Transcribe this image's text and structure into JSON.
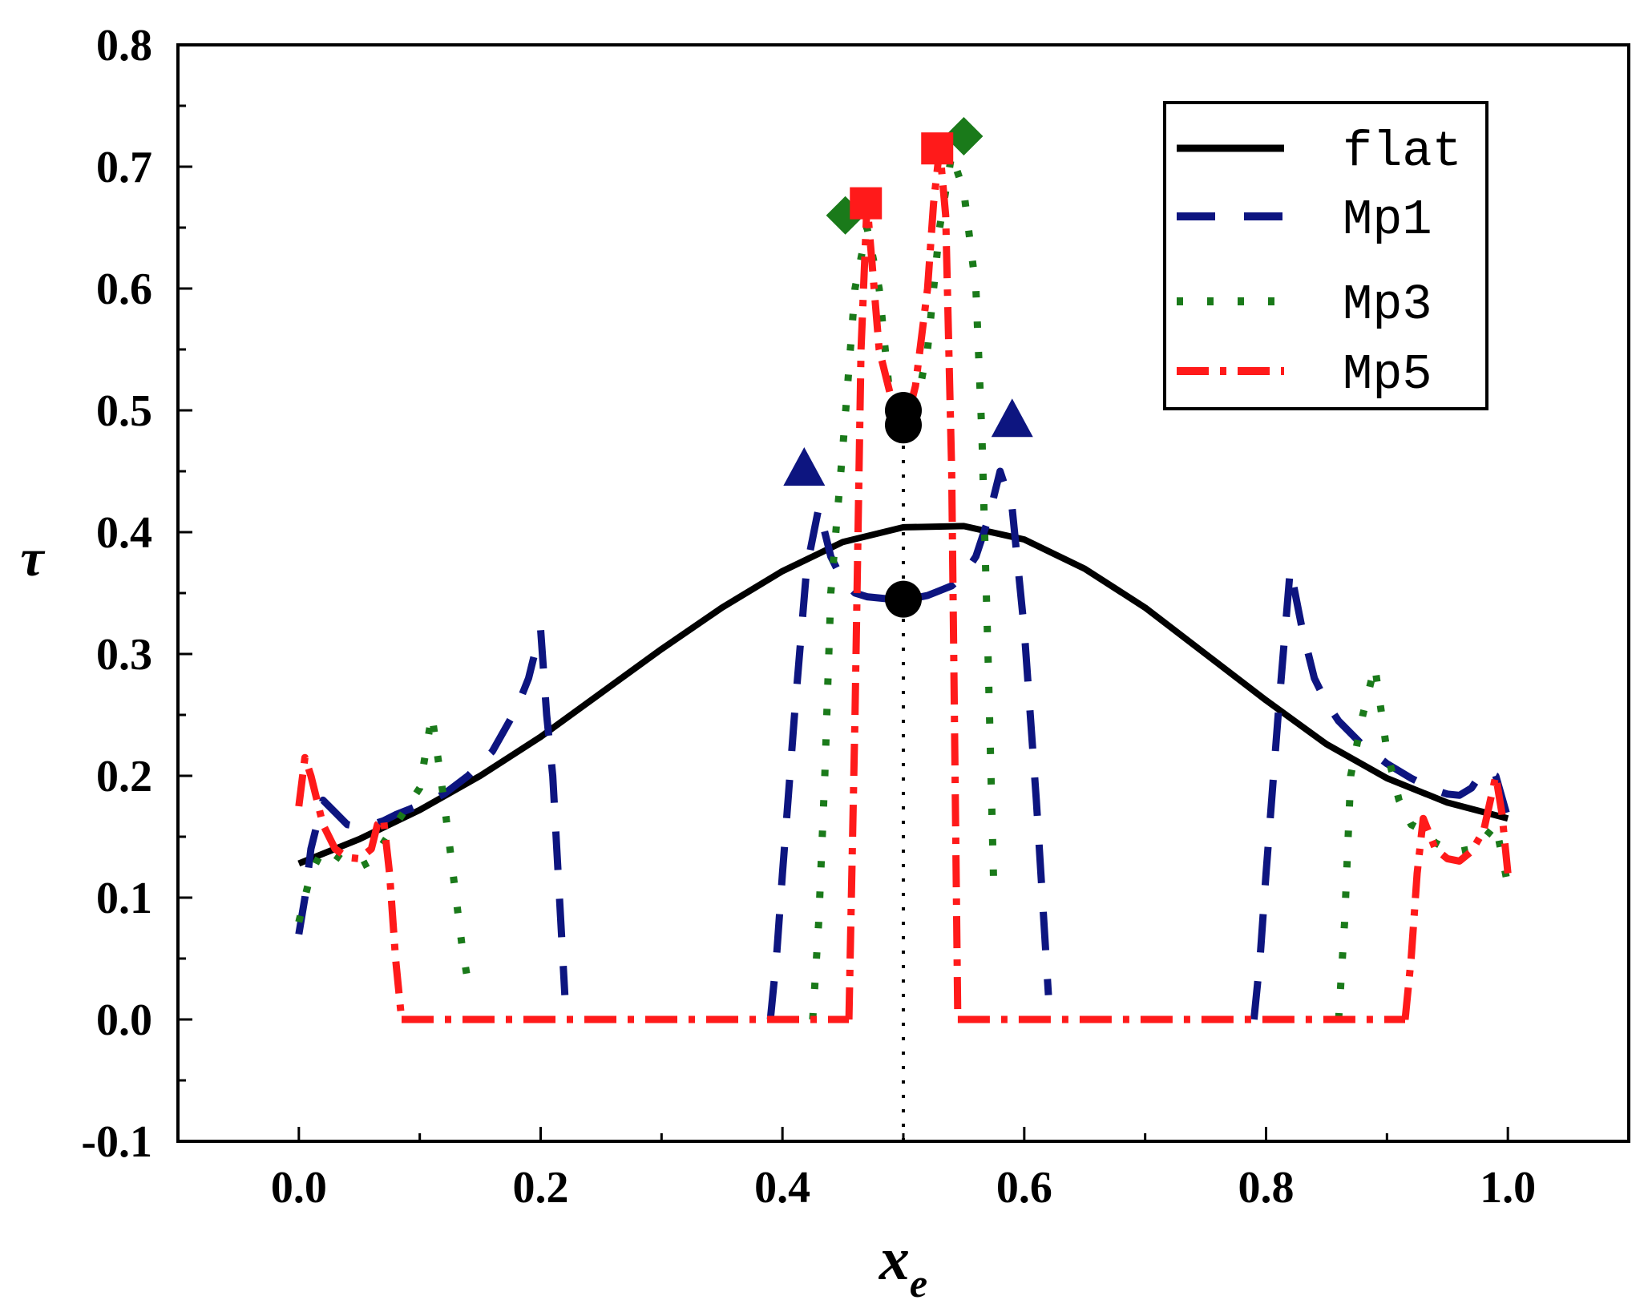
{
  "chart_data": {
    "type": "line",
    "title": "",
    "xlabel": "x",
    "xlabel_sub": "e",
    "ylabel": "τ",
    "xlim": [
      -0.1,
      1.1
    ],
    "ylim": [
      -0.1,
      0.8
    ],
    "x_ticks": [
      0.0,
      0.2,
      0.4,
      0.6,
      0.8,
      1.0
    ],
    "x_tick_labels": [
      "0.0",
      "0.2",
      "0.4",
      "0.6",
      "0.8",
      "1.0"
    ],
    "y_ticks": [
      -0.1,
      0.0,
      0.1,
      0.2,
      0.3,
      0.4,
      0.5,
      0.6,
      0.7,
      0.8
    ],
    "y_tick_labels": [
      "-0.1",
      "0.0",
      "0.1",
      "0.2",
      "0.3",
      "0.4",
      "0.5",
      "0.6",
      "0.7",
      "0.8"
    ],
    "grid": false,
    "legend_position": "top-right",
    "colors": {
      "flat": "#000000",
      "mp1": "#0d1580",
      "mp3": "#1a7a1a",
      "mp5": "#ff1a1a",
      "diamond": "#1a7a1a"
    },
    "series": [
      {
        "name": "flat",
        "style": "solid",
        "x": [
          0.0,
          0.05,
          0.1,
          0.15,
          0.2,
          0.25,
          0.3,
          0.35,
          0.4,
          0.45,
          0.5,
          0.55,
          0.6,
          0.65,
          0.7,
          0.75,
          0.8,
          0.85,
          0.9,
          0.95,
          1.0
        ],
        "y": [
          0.128,
          0.148,
          0.172,
          0.2,
          0.232,
          0.268,
          0.304,
          0.338,
          0.368,
          0.392,
          0.404,
          0.405,
          0.394,
          0.37,
          0.338,
          0.3,
          0.262,
          0.226,
          0.198,
          0.178,
          0.165
        ]
      },
      {
        "name": "Mp1",
        "style": "dash",
        "x": [
          0.0,
          0.005,
          0.01,
          0.02,
          0.03,
          0.04,
          0.05,
          0.06,
          0.07,
          0.08,
          0.09,
          0.1,
          0.12,
          0.14,
          0.16,
          0.18,
          0.19,
          0.2,
          0.205,
          0.21,
          0.22,
          null,
          0.39,
          0.395,
          0.4,
          0.41,
          0.42,
          0.43,
          0.44,
          0.45,
          0.46,
          0.47,
          0.48,
          0.49,
          0.5,
          0.51,
          0.52,
          0.53,
          0.54,
          0.55,
          0.56,
          0.57,
          0.58,
          0.59,
          0.6,
          0.61,
          0.62,
          null,
          0.79,
          0.795,
          0.8,
          0.81,
          0.82,
          0.83,
          0.84,
          0.85,
          0.86,
          0.88,
          0.9,
          0.92,
          0.94,
          0.95,
          0.96,
          0.97,
          0.98,
          0.99,
          1.0
        ],
        "y": [
          0.07,
          0.1,
          0.14,
          0.18,
          0.17,
          0.16,
          0.158,
          0.16,
          0.163,
          0.168,
          0.172,
          0.176,
          0.185,
          0.2,
          0.22,
          0.255,
          0.28,
          0.32,
          0.25,
          0.2,
          0.02,
          null,
          0.0,
          0.05,
          0.12,
          0.25,
          0.37,
          0.42,
          0.38,
          0.36,
          0.35,
          0.347,
          0.346,
          0.345,
          0.345,
          0.346,
          0.348,
          0.352,
          0.356,
          0.365,
          0.38,
          0.41,
          0.45,
          0.42,
          0.32,
          0.18,
          0.02,
          null,
          0.0,
          0.05,
          0.12,
          0.25,
          0.37,
          0.32,
          0.28,
          0.26,
          0.245,
          0.225,
          0.21,
          0.198,
          0.188,
          0.185,
          0.184,
          0.19,
          0.205,
          0.2,
          0.165
        ]
      },
      {
        "name": "Mp3",
        "style": "dot",
        "x": [
          0.0,
          0.01,
          0.02,
          0.03,
          0.04,
          0.05,
          0.06,
          0.07,
          0.08,
          0.1,
          0.11,
          0.12,
          0.125,
          0.13,
          0.135,
          0.14,
          null,
          0.425,
          0.43,
          0.435,
          0.44,
          0.45,
          0.46,
          0.47,
          0.48,
          0.49,
          0.5,
          0.51,
          0.52,
          0.53,
          0.54,
          0.55,
          0.56,
          0.565,
          0.57,
          0.575,
          null,
          0.86,
          0.865,
          0.87,
          0.88,
          0.89,
          0.9,
          0.91,
          0.92,
          0.93,
          0.94,
          0.95,
          0.96,
          0.97,
          0.98,
          0.99,
          1.0
        ],
        "y": [
          0.08,
          0.12,
          0.14,
          0.135,
          0.128,
          0.125,
          0.13,
          0.145,
          0.16,
          0.19,
          0.25,
          0.18,
          0.14,
          0.1,
          0.06,
          0.03,
          null,
          0.0,
          0.08,
          0.2,
          0.35,
          0.47,
          0.6,
          0.65,
          0.6,
          0.5,
          0.5,
          0.5,
          0.55,
          0.65,
          0.71,
          0.68,
          0.6,
          0.48,
          0.3,
          0.1,
          null,
          0.0,
          0.08,
          0.2,
          0.25,
          0.29,
          0.22,
          0.18,
          0.16,
          0.155,
          0.145,
          0.14,
          0.138,
          0.14,
          0.148,
          0.16,
          0.11
        ]
      },
      {
        "name": "Mp5",
        "style": "dashdot",
        "x": [
          0.0,
          0.005,
          0.01,
          0.02,
          0.03,
          0.04,
          0.05,
          0.06,
          0.065,
          0.07,
          0.075,
          0.08,
          0.085,
          null,
          0.085,
          0.455,
          null,
          0.455,
          0.46,
          0.465,
          0.47,
          0.475,
          0.48,
          0.49,
          0.495,
          0.5,
          0.505,
          0.51,
          0.52,
          0.525,
          0.53,
          0.535,
          0.54,
          0.545,
          null,
          0.545,
          0.915,
          null,
          0.915,
          0.92,
          0.925,
          0.93,
          0.94,
          0.95,
          0.96,
          0.97,
          0.98,
          0.99,
          0.995,
          1.0
        ],
        "y": [
          0.175,
          0.215,
          0.2,
          0.16,
          0.14,
          0.133,
          0.132,
          0.14,
          0.16,
          0.165,
          0.12,
          0.05,
          0.0,
          null,
          0.0,
          0.0,
          null,
          0.0,
          0.25,
          0.55,
          0.67,
          0.61,
          0.55,
          0.51,
          0.5,
          0.5,
          0.5,
          0.52,
          0.6,
          0.67,
          0.715,
          0.66,
          0.45,
          0.0,
          null,
          0.0,
          0.0,
          null,
          0.0,
          0.05,
          0.12,
          0.165,
          0.14,
          0.132,
          0.13,
          0.138,
          0.155,
          0.2,
          0.17,
          0.12
        ]
      }
    ],
    "markers": [
      {
        "shape": "diamond",
        "color": "#1a7a1a",
        "x": 0.452,
        "y": 0.66
      },
      {
        "shape": "diamond",
        "color": "#1a7a1a",
        "x": 0.55,
        "y": 0.725
      },
      {
        "shape": "square",
        "color": "#ff1a1a",
        "x": 0.469,
        "y": 0.67
      },
      {
        "shape": "square",
        "color": "#ff1a1a",
        "x": 0.528,
        "y": 0.715
      },
      {
        "shape": "triangle",
        "color": "#0d1580",
        "x": 0.418,
        "y": 0.45
      },
      {
        "shape": "triangle",
        "color": "#0d1580",
        "x": 0.59,
        "y": 0.49
      },
      {
        "shape": "circle",
        "color": "#000000",
        "x": 0.5,
        "y": 0.5
      },
      {
        "shape": "circle",
        "color": "#000000",
        "x": 0.5,
        "y": 0.488
      },
      {
        "shape": "circle",
        "color": "#000000",
        "x": 0.5,
        "y": 0.345
      }
    ],
    "reference_line": {
      "x": 0.5,
      "y_from": -0.1,
      "y_to": 0.48,
      "style": "dotted"
    }
  }
}
